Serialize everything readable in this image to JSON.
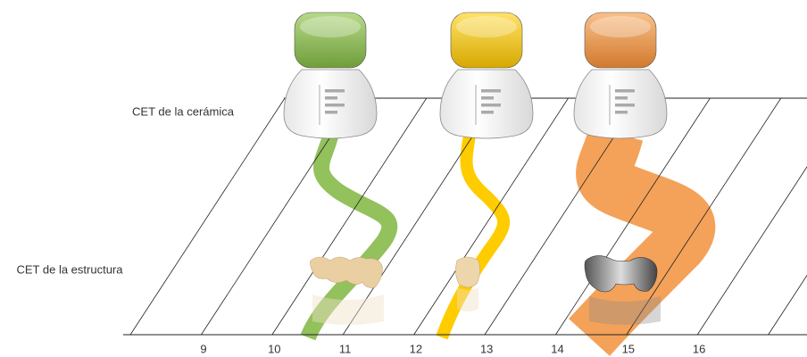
{
  "labels": {
    "ceramic": "CET de la cerámica",
    "structure": "CET de la estructura"
  },
  "axis": {
    "ticks": [
      9,
      10,
      11,
      12,
      13,
      14,
      15,
      16
    ]
  }
}
